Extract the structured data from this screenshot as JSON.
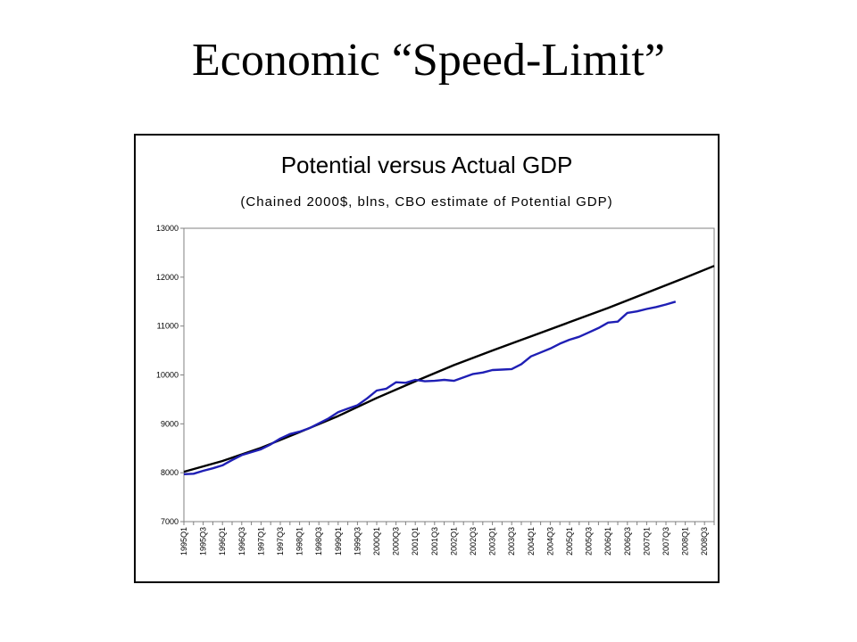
{
  "slide": {
    "title": "Economic “Speed-Limit”"
  },
  "chart_data": {
    "type": "line",
    "title": "Potential versus Actual GDP",
    "subtitle": "(Chained 2000$, blns, CBO estimate of Potential GDP)",
    "xlabel": "",
    "ylabel": "",
    "ylim": [
      7000,
      13000
    ],
    "yticks": [
      7000,
      8000,
      9000,
      10000,
      11000,
      12000,
      13000
    ],
    "grid": false,
    "legend": "none",
    "x_tick_labels": [
      "1995Q1",
      "1995Q3",
      "1996Q1",
      "1996Q3",
      "1997Q1",
      "1997Q3",
      "1998Q1",
      "1998Q3",
      "1999Q1",
      "1999Q3",
      "2000Q1",
      "2000Q3",
      "2001Q1",
      "2001Q3",
      "2002Q1",
      "2002Q3",
      "2003Q1",
      "2003Q3",
      "2004Q1",
      "2004Q3",
      "2005Q1",
      "2005Q3",
      "2006Q1",
      "2006Q3",
      "2007Q1",
      "2007Q3",
      "2008Q1",
      "2008Q3"
    ],
    "x_start": "1995Q1",
    "x_end": "2008Q4",
    "series": [
      {
        "color": "#000000",
        "points": [
          [
            "1995Q1",
            8020
          ],
          [
            "1996Q1",
            8240
          ],
          [
            "1997Q1",
            8510
          ],
          [
            "1998Q1",
            8830
          ],
          [
            "1999Q1",
            9160
          ],
          [
            "2000Q1",
            9530
          ],
          [
            "2001Q1",
            9870
          ],
          [
            "2002Q1",
            10200
          ],
          [
            "2003Q1",
            10500
          ],
          [
            "2004Q1",
            10790
          ],
          [
            "2005Q1",
            11080
          ],
          [
            "2006Q1",
            11370
          ],
          [
            "2007Q1",
            11680
          ],
          [
            "2008Q1",
            11990
          ],
          [
            "2008Q4",
            12230
          ]
        ]
      },
      {
        "color": "#1f1fb5",
        "points": [
          [
            "1995Q1",
            7970
          ],
          [
            "1995Q2",
            7980
          ],
          [
            "1995Q3",
            8040
          ],
          [
            "1995Q4",
            8090
          ],
          [
            "1996Q1",
            8150
          ],
          [
            "1996Q2",
            8260
          ],
          [
            "1996Q3",
            8360
          ],
          [
            "1996Q4",
            8420
          ],
          [
            "1997Q1",
            8480
          ],
          [
            "1997Q2",
            8580
          ],
          [
            "1997Q3",
            8700
          ],
          [
            "1997Q4",
            8790
          ],
          [
            "1998Q1",
            8840
          ],
          [
            "1998Q2",
            8910
          ],
          [
            "1998Q3",
            9010
          ],
          [
            "1998Q4",
            9110
          ],
          [
            "1999Q1",
            9240
          ],
          [
            "1999Q2",
            9310
          ],
          [
            "1999Q3",
            9380
          ],
          [
            "1999Q4",
            9520
          ],
          [
            "2000Q1",
            9680
          ],
          [
            "2000Q2",
            9720
          ],
          [
            "2000Q3",
            9850
          ],
          [
            "2000Q4",
            9840
          ],
          [
            "2001Q1",
            9900
          ],
          [
            "2001Q2",
            9870
          ],
          [
            "2001Q3",
            9880
          ],
          [
            "2001Q4",
            9900
          ],
          [
            "2002Q1",
            9880
          ],
          [
            "2002Q2",
            9950
          ],
          [
            "2002Q3",
            10020
          ],
          [
            "2002Q4",
            10050
          ],
          [
            "2003Q1",
            10100
          ],
          [
            "2003Q2",
            10110
          ],
          [
            "2003Q3",
            10120
          ],
          [
            "2003Q4",
            10220
          ],
          [
            "2004Q1",
            10380
          ],
          [
            "2004Q2",
            10460
          ],
          [
            "2004Q3",
            10540
          ],
          [
            "2004Q4",
            10640
          ],
          [
            "2005Q1",
            10720
          ],
          [
            "2005Q2",
            10780
          ],
          [
            "2005Q3",
            10870
          ],
          [
            "2005Q4",
            10960
          ],
          [
            "2006Q1",
            11070
          ],
          [
            "2006Q2",
            11090
          ],
          [
            "2006Q3",
            11270
          ],
          [
            "2006Q4",
            11300
          ],
          [
            "2007Q1",
            11350
          ],
          [
            "2007Q2",
            11390
          ],
          [
            "2007Q3",
            11440
          ],
          [
            "2007Q4",
            11500
          ]
        ]
      }
    ]
  }
}
